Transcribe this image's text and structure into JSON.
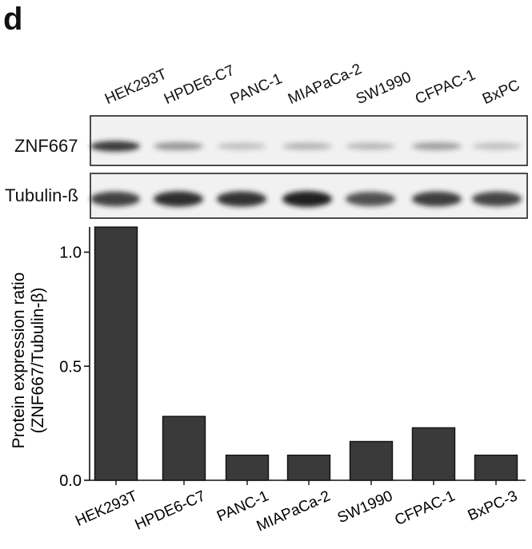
{
  "panel_label": "d",
  "blot": {
    "top_lanes": [
      "HEK293T",
      "HPDE6-C7",
      "PANC-1",
      "MIAPaCa-2",
      "SW1990",
      "CFPAC-1",
      "BxPC"
    ],
    "rows": [
      {
        "label": "ZNF667",
        "band_intensity": [
          0.85,
          0.35,
          0.12,
          0.18,
          0.16,
          0.3,
          0.12
        ]
      },
      {
        "label": "Tubulin-ß",
        "band_intensity": [
          0.8,
          0.9,
          0.88,
          0.98,
          0.72,
          0.82,
          0.78
        ]
      }
    ],
    "colors": {
      "band": "#1a1a1a",
      "background": "#f1f1f1"
    }
  },
  "chart_data": {
    "type": "bar",
    "categories": [
      "HEK293T",
      "HPDE6-C7",
      "PANC-1",
      "MIAPaCa-2",
      "SW1990",
      "CFPAC-1",
      "BxPC-3"
    ],
    "values": [
      1.11,
      0.28,
      0.11,
      0.11,
      0.17,
      0.23,
      0.11
    ],
    "ylabel": "Protein expression ratio",
    "ylabel2": "(ZNF667/Tubulin-β)",
    "ylim": [
      0,
      1.1
    ],
    "yticks": [
      0.0,
      0.5,
      1.0
    ],
    "ytick_labels": [
      "0.0",
      "0.5",
      "1.0"
    ],
    "bar_color": "#3a3a3a",
    "grid": false,
    "legend": "none"
  }
}
